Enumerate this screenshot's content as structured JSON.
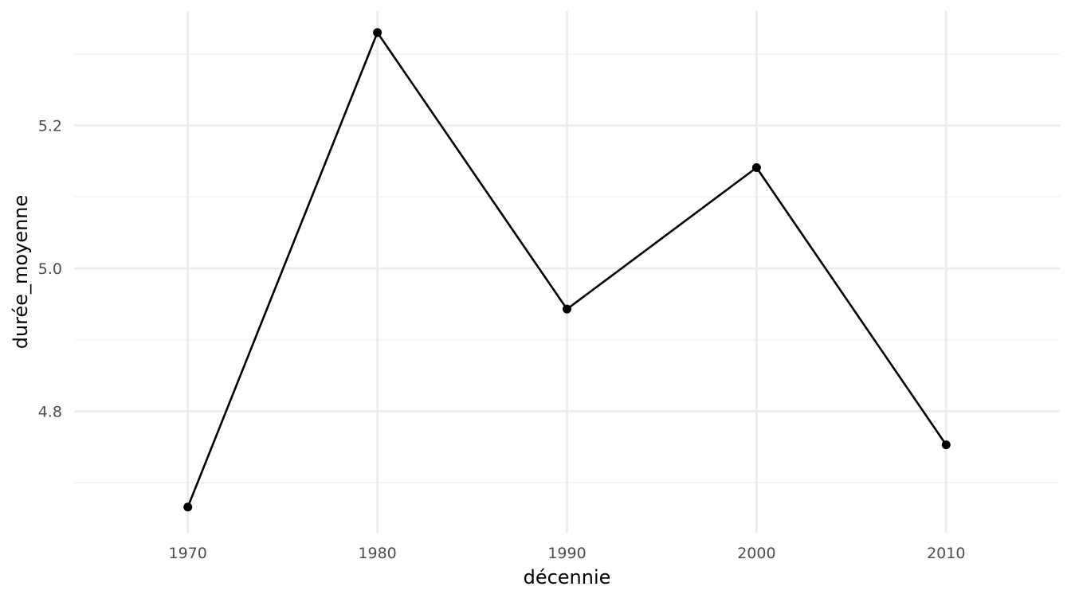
{
  "chart_data": {
    "type": "line",
    "title": "",
    "xlabel": "décennie",
    "ylabel": "durée_moyenne",
    "x": [
      1970,
      1980,
      1990,
      2000,
      2010
    ],
    "series": [
      {
        "values": [
          4.666,
          5.33,
          4.943,
          5.141,
          4.753
        ]
      }
    ],
    "xlim": [
      1964,
      2016
    ],
    "ylim": [
      4.63,
      5.36
    ],
    "xticks": [
      1970,
      1980,
      1990,
      2000,
      2010
    ],
    "xtick_labels": [
      "1970",
      "1980",
      "1990",
      "2000",
      "2010"
    ],
    "yticks": [
      4.8,
      5.0,
      5.2
    ],
    "ytick_labels": [
      "4.8",
      "5.0",
      "5.2"
    ],
    "y_minor_ticks": [
      4.7,
      4.9,
      5.1,
      5.3
    ],
    "grid": true,
    "legend": "none",
    "colors": {
      "background": "#ffffff",
      "grid_major": "#ebebeb",
      "grid_minor": "#f2f2f2",
      "line": "#000000",
      "point": "#000000",
      "tick_text": "#4d4d4d",
      "axis_title": "#000000"
    }
  }
}
